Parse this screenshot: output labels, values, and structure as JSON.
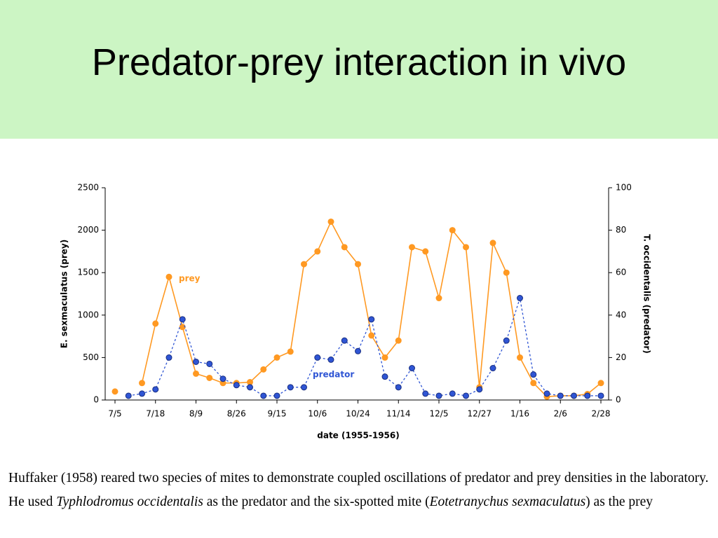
{
  "title": "Predator-prey interaction in vivo",
  "chart_data": {
    "type": "line",
    "categories": [
      "7/5",
      null,
      null,
      "7/18",
      null,
      null,
      "8/9",
      null,
      null,
      "8/26",
      null,
      null,
      "9/15",
      null,
      null,
      "10/6",
      null,
      null,
      "10/24",
      null,
      null,
      "11/14",
      null,
      null,
      "12/5",
      null,
      null,
      "12/27",
      null,
      null,
      "1/16",
      null,
      null,
      "2/6",
      null,
      null,
      "2/28"
    ],
    "series": [
      {
        "name": "prey",
        "color": "#ff9922",
        "values": [
          100,
          null,
          200,
          900,
          1450,
          860,
          310,
          260,
          200,
          200,
          210,
          360,
          500,
          570,
          1600,
          1750,
          2100,
          1800,
          1600,
          760,
          500,
          700,
          1800,
          1750,
          1200,
          2000,
          1800,
          150,
          1850,
          1500,
          500,
          200,
          40,
          50,
          50,
          70,
          200
        ]
      },
      {
        "name": "predator",
        "color": "#2f55d4",
        "axis": "y2",
        "dashed": true,
        "values": [
          null,
          2,
          3,
          5,
          20,
          38,
          18,
          17,
          10,
          7,
          6,
          2,
          2,
          6,
          6,
          20,
          19,
          28,
          23,
          38,
          11,
          6,
          15,
          3,
          2,
          3,
          2,
          5,
          15,
          28,
          48,
          12,
          3,
          2,
          2,
          2,
          2
        ]
      }
    ],
    "xlabel": "date (1955-1956)",
    "ylabel": "E. sexmaculatus (prey)",
    "y2label": "T. occidentalis (predator)",
    "ylim": [
      0,
      2500
    ],
    "yticks": [
      0,
      500,
      1000,
      1500,
      2000,
      2500
    ],
    "y2lim": [
      0,
      100
    ],
    "y2ticks": [
      0,
      20,
      40,
      60,
      80,
      100
    ]
  },
  "caption": [
    "Huffaker (1958) reared two species of mites to demonstrate coupled oscillations of predator and prey densities in the laboratory. He used ",
    "Typhlodromus occidentalis",
    " as the predator and the six-spotted mite (",
    "Eotetranychus sexmaculatus",
    ") as the prey"
  ]
}
